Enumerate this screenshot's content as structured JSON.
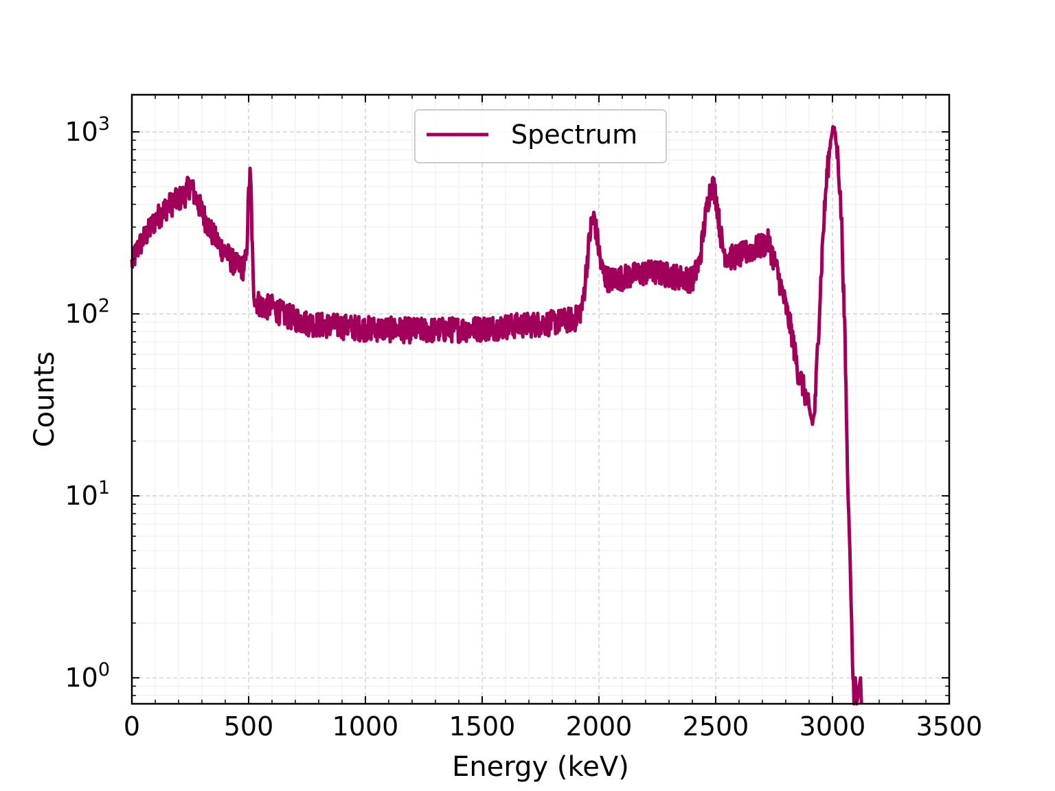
{
  "chart_data": {
    "type": "line",
    "title": "",
    "xlabel": "Energy (keV)",
    "ylabel": "Counts",
    "xlim": [
      0,
      3500
    ],
    "ylim": [
      0.72,
      1600
    ],
    "yscale": "log",
    "grid": true,
    "legend": {
      "position": "top-center"
    },
    "x_ticks": [
      "0",
      "500",
      "1000",
      "1500",
      "2000",
      "2500",
      "3000",
      "3500"
    ],
    "x_tick_values": [
      0,
      500,
      1000,
      1500,
      2000,
      2500,
      3000,
      3500
    ],
    "y_ticks": [
      {
        "value": 1,
        "base": "10",
        "exp": "0"
      },
      {
        "value": 10,
        "base": "10",
        "exp": "1"
      },
      {
        "value": 100,
        "base": "10",
        "exp": "2"
      },
      {
        "value": 1000,
        "base": "10",
        "exp": "3"
      }
    ],
    "series": [
      {
        "name": "Spectrum",
        "color": "#a0005a",
        "x": [
          0,
          25,
          50,
          75,
          100,
          125,
          150,
          175,
          200,
          225,
          250,
          275,
          300,
          325,
          350,
          375,
          400,
          425,
          450,
          475,
          490,
          500,
          505,
          510,
          515,
          520,
          530,
          545,
          560,
          600,
          650,
          700,
          750,
          800,
          850,
          900,
          950,
          1000,
          1100,
          1200,
          1300,
          1400,
          1500,
          1600,
          1700,
          1800,
          1900,
          1930,
          1950,
          1965,
          1980,
          1995,
          2010,
          2030,
          2050,
          2100,
          2150,
          2200,
          2250,
          2300,
          2350,
          2400,
          2430,
          2450,
          2470,
          2485,
          2500,
          2515,
          2530,
          2550,
          2600,
          2650,
          2700,
          2725,
          2750,
          2775,
          2800,
          2825,
          2850,
          2875,
          2900,
          2915,
          2925,
          2935,
          2950,
          2960,
          2975,
          2990,
          3000,
          3010,
          3025,
          3040,
          3055,
          3065,
          3075,
          3082,
          3085,
          3088,
          3090
        ],
        "y": [
          190,
          230,
          260,
          290,
          330,
          360,
          390,
          410,
          430,
          450,
          520,
          430,
          370,
          310,
          270,
          240,
          220,
          200,
          185,
          180,
          200,
          450,
          590,
          480,
          250,
          140,
          120,
          115,
          110,
          110,
          100,
          95,
          90,
          88,
          87,
          86,
          85,
          84,
          83,
          82,
          82,
          83,
          84,
          86,
          88,
          90,
          95,
          110,
          200,
          300,
          340,
          250,
          180,
          160,
          155,
          160,
          165,
          170,
          170,
          165,
          160,
          155,
          190,
          300,
          450,
          520,
          460,
          320,
          230,
          205,
          210,
          225,
          240,
          250,
          200,
          150,
          110,
          80,
          50,
          40,
          30,
          25,
          30,
          60,
          150,
          280,
          550,
          850,
          1050,
          1000,
          700,
          300,
          60,
          12,
          5,
          2,
          1.3,
          1,
          1
        ]
      }
    ]
  }
}
